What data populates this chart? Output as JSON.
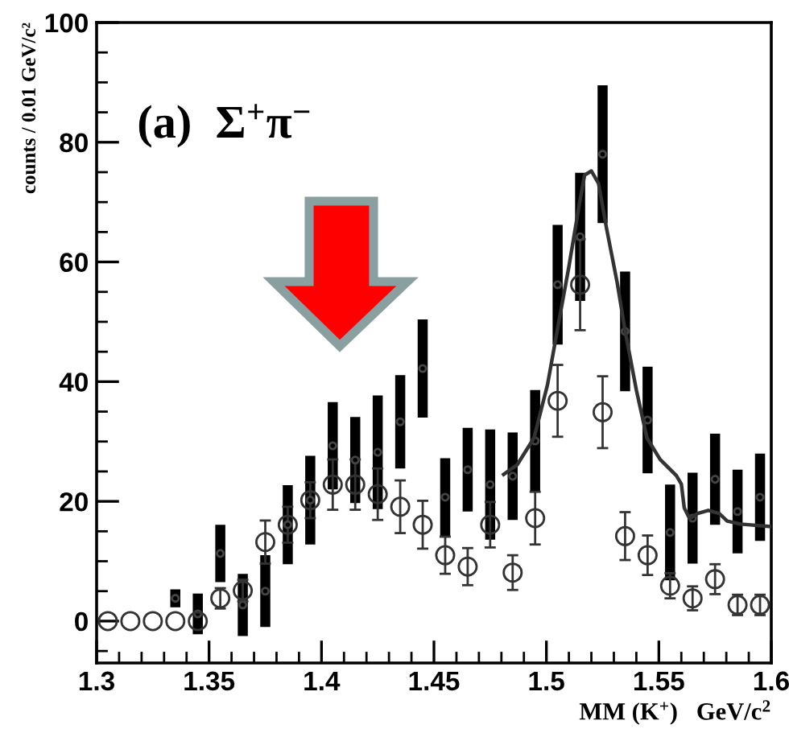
{
  "chart_data": {
    "type": "scatter",
    "xlabel": "MM (K$^{+}$)   GeV/c$^{2}$",
    "ylabel": "counts / 0.01 GeV/c²",
    "annotations": [
      "(a)  Σ$^{+}$π$^{−}$"
    ],
    "xlim": [
      1.3,
      1.6
    ],
    "xticks": [
      1.3,
      1.35,
      1.4,
      1.45,
      1.5,
      1.55,
      1.6
    ],
    "ylim": [
      -7,
      100
    ],
    "yticks": [
      0,
      20,
      40,
      60,
      80,
      100
    ],
    "grid": false,
    "legend": false,
    "series": [
      {
        "marker": "circle",
        "color": "#000000",
        "x": [
          1.335,
          1.345,
          1.355,
          1.365,
          1.375,
          1.385,
          1.395,
          1.405,
          1.415,
          1.425,
          1.435,
          1.445,
          1.455,
          1.465,
          1.475,
          1.485,
          1.495,
          1.505,
          1.515,
          1.525,
          1.535,
          1.545,
          1.555,
          1.565,
          1.575,
          1.585,
          1.595
        ],
        "values": [
          3.8,
          1.2,
          11.3,
          2.7,
          5,
          16.1,
          20.2,
          29.3,
          26.9,
          28.2,
          33.3,
          42.2,
          20.7,
          25.3,
          22.8,
          24.2,
          30.1,
          56.2,
          64.2,
          78,
          48.4,
          33.6,
          14.8,
          17.2,
          23.7,
          18.3,
          20.7
        ],
        "errors": [
          1.5,
          3.4,
          4.8,
          5.2,
          6,
          6.6,
          7.4,
          7.3,
          7.2,
          9.5,
          7.8,
          8.2,
          6.5,
          7,
          9.2,
          7.3,
          8.5,
          10,
          10.7,
          11.5,
          10,
          8.9,
          8,
          7.6,
          7.6,
          7,
          7.3
        ]
      },
      {
        "marker": "circle",
        "color": "#333333",
        "x": [
          1.305,
          1.315,
          1.325,
          1.335,
          1.345,
          1.355,
          1.365,
          1.375,
          1.385,
          1.395,
          1.405,
          1.415,
          1.425,
          1.435,
          1.445,
          1.455,
          1.465,
          1.475,
          1.485,
          1.495,
          1.505,
          1.515,
          1.525,
          1.535,
          1.545,
          1.555,
          1.565,
          1.575,
          1.585,
          1.595
        ],
        "values": [
          0,
          0,
          0,
          0,
          0,
          3.8,
          5.1,
          13.2,
          16.1,
          20.2,
          22.8,
          22.8,
          21.2,
          19.1,
          16.1,
          11,
          9.1,
          16.1,
          8.1,
          17.2,
          36.8,
          56.2,
          34.9,
          14.2,
          11,
          5.9,
          3.8,
          7,
          2.7,
          2.7
        ],
        "errors": [
          null,
          null,
          null,
          null,
          null,
          1.7,
          1.8,
          3.6,
          3,
          3,
          4.2,
          4.2,
          4.3,
          4.4,
          4,
          3.1,
          3.1,
          3.8,
          2.9,
          4.4,
          6,
          7.6,
          6,
          4,
          3.3,
          2.1,
          2,
          2.5,
          1.7,
          1.7
        ]
      },
      {
        "type": "line",
        "marker": "none",
        "line_style": "solid",
        "color": "#333333",
        "x": [
          1.481,
          1.487,
          1.4945,
          1.5005,
          1.5048,
          1.51,
          1.5148,
          1.517,
          1.52,
          1.5232,
          1.5268,
          1.5315,
          1.535,
          1.54,
          1.5447,
          1.5506,
          1.5578,
          1.56,
          1.5613,
          1.5637,
          1.5673,
          1.572,
          1.5768,
          1.5804,
          1.5864,
          1.5995
        ],
        "values": [
          24.5,
          26.1,
          30.6,
          39.5,
          48.5,
          59.2,
          70,
          74.5,
          75.2,
          73.1,
          65.5,
          56.5,
          48.5,
          38.6,
          30.6,
          27,
          24.3,
          22.9,
          18.9,
          17.1,
          18,
          18.5,
          18,
          16.7,
          16.2,
          15.8
        ]
      }
    ]
  }
}
